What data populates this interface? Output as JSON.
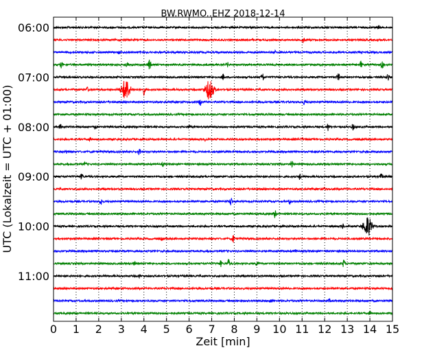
{
  "chart_data": {
    "type": "line",
    "title": "BW.RWMO..EHZ 2018-12-14",
    "xlabel": "Zeit  [min]",
    "ylabel": "UTC (Lokalzeit = UTC + 01:00)",
    "xlim": [
      0,
      15
    ],
    "x_ticks": [
      "0",
      "1",
      "2",
      "3",
      "4",
      "5",
      "6",
      "7",
      "8",
      "9",
      "10",
      "11",
      "12",
      "13",
      "14",
      "15"
    ],
    "y_tick_labels": [
      "06:00",
      "07:00",
      "08:00",
      "09:00",
      "10:00",
      "11:00"
    ],
    "grid": "vertical dotted",
    "trace_colors": [
      "#000000",
      "#ff0000",
      "#0000ff",
      "#008000"
    ],
    "trace_interval_minutes": 15,
    "traces": [
      {
        "label_time": "06:00",
        "events": [
          {
            "t": 14.4,
            "amp": 2
          }
        ]
      },
      {
        "label_time": "06:15",
        "events": [
          {
            "t": 11.05,
            "amp": 4
          }
        ]
      },
      {
        "label_time": "06:30",
        "events": [
          {
            "t": 2.9,
            "amp": 2
          },
          {
            "t": 9.8,
            "amp": 2
          }
        ]
      },
      {
        "label_time": "06:45",
        "events": [
          {
            "t": 0.35,
            "amp": 4
          },
          {
            "t": 3.25,
            "amp": 4
          },
          {
            "t": 4.25,
            "amp": 8
          },
          {
            "t": 7.7,
            "amp": 3
          },
          {
            "t": 13.6,
            "amp": 5
          },
          {
            "t": 14.55,
            "amp": 8
          }
        ]
      },
      {
        "label_time": "07:00",
        "events": [
          {
            "t": 7.5,
            "amp": 4
          },
          {
            "t": 9.25,
            "amp": 7
          },
          {
            "t": 12.6,
            "amp": 6
          },
          {
            "t": 14.8,
            "amp": 5
          }
        ]
      },
      {
        "label_time": "07:15",
        "events": [
          {
            "t": 1.5,
            "amp": 3
          },
          {
            "t": 3.2,
            "amp": 15
          },
          {
            "t": 4.0,
            "amp": 7
          },
          {
            "t": 6.9,
            "amp": 14
          }
        ]
      },
      {
        "label_time": "07:30",
        "events": [
          {
            "t": 6.5,
            "amp": 6
          },
          {
            "t": 11.1,
            "amp": 3
          }
        ]
      },
      {
        "label_time": "07:45",
        "events": []
      },
      {
        "label_time": "08:00",
        "events": [
          {
            "t": 0.3,
            "amp": 3
          },
          {
            "t": 1.85,
            "amp": 3
          },
          {
            "t": 6.0,
            "amp": 3
          },
          {
            "t": 12.15,
            "amp": 6
          },
          {
            "t": 13.25,
            "amp": 4
          }
        ]
      },
      {
        "label_time": "08:15",
        "events": [
          {
            "t": 1.6,
            "amp": 2
          },
          {
            "t": 6.7,
            "amp": 2
          },
          {
            "t": 11.0,
            "amp": 2
          }
        ]
      },
      {
        "label_time": "08:30",
        "events": [
          {
            "t": 0.6,
            "amp": 3
          },
          {
            "t": 3.8,
            "amp": 5
          }
        ]
      },
      {
        "label_time": "08:45",
        "events": [
          {
            "t": 1.4,
            "amp": 2
          },
          {
            "t": 4.85,
            "amp": 3
          },
          {
            "t": 10.55,
            "amp": 6
          }
        ]
      },
      {
        "label_time": "09:00",
        "events": [
          {
            "t": 1.25,
            "amp": 4
          },
          {
            "t": 10.9,
            "amp": 4
          },
          {
            "t": 14.5,
            "amp": 4
          }
        ]
      },
      {
        "label_time": "09:15",
        "events": [
          {
            "t": 12.0,
            "amp": 2
          }
        ]
      },
      {
        "label_time": "09:30",
        "events": [
          {
            "t": 2.1,
            "amp": 5
          },
          {
            "t": 7.85,
            "amp": 6
          },
          {
            "t": 10.45,
            "amp": 4
          }
        ]
      },
      {
        "label_time": "09:45",
        "events": [
          {
            "t": 9.8,
            "amp": 6
          }
        ]
      },
      {
        "label_time": "10:00",
        "events": [
          {
            "t": 12.8,
            "amp": 3
          },
          {
            "t": 13.9,
            "amp": 14
          }
        ]
      },
      {
        "label_time": "10:15",
        "events": [
          {
            "t": 4.8,
            "amp": 2
          },
          {
            "t": 7.95,
            "amp": 6
          }
        ]
      },
      {
        "label_time": "10:30",
        "events": [
          {
            "t": 10.7,
            "amp": 2
          }
        ]
      },
      {
        "label_time": "10:45",
        "events": [
          {
            "t": 3.6,
            "amp": 3
          },
          {
            "t": 7.4,
            "amp": 4
          },
          {
            "t": 7.75,
            "amp": 6
          },
          {
            "t": 9.0,
            "amp": 3
          },
          {
            "t": 12.85,
            "amp": 6
          }
        ]
      },
      {
        "label_time": "11:00",
        "events": [
          {
            "t": 3.8,
            "amp": 2
          }
        ]
      },
      {
        "label_time": "11:15",
        "events": []
      },
      {
        "label_time": "11:30",
        "events": [
          {
            "t": 9.6,
            "amp": 2
          },
          {
            "t": 12.2,
            "amp": 2
          }
        ]
      },
      {
        "label_time": "11:45",
        "events": [
          {
            "t": 14.0,
            "amp": 2
          }
        ]
      }
    ]
  }
}
